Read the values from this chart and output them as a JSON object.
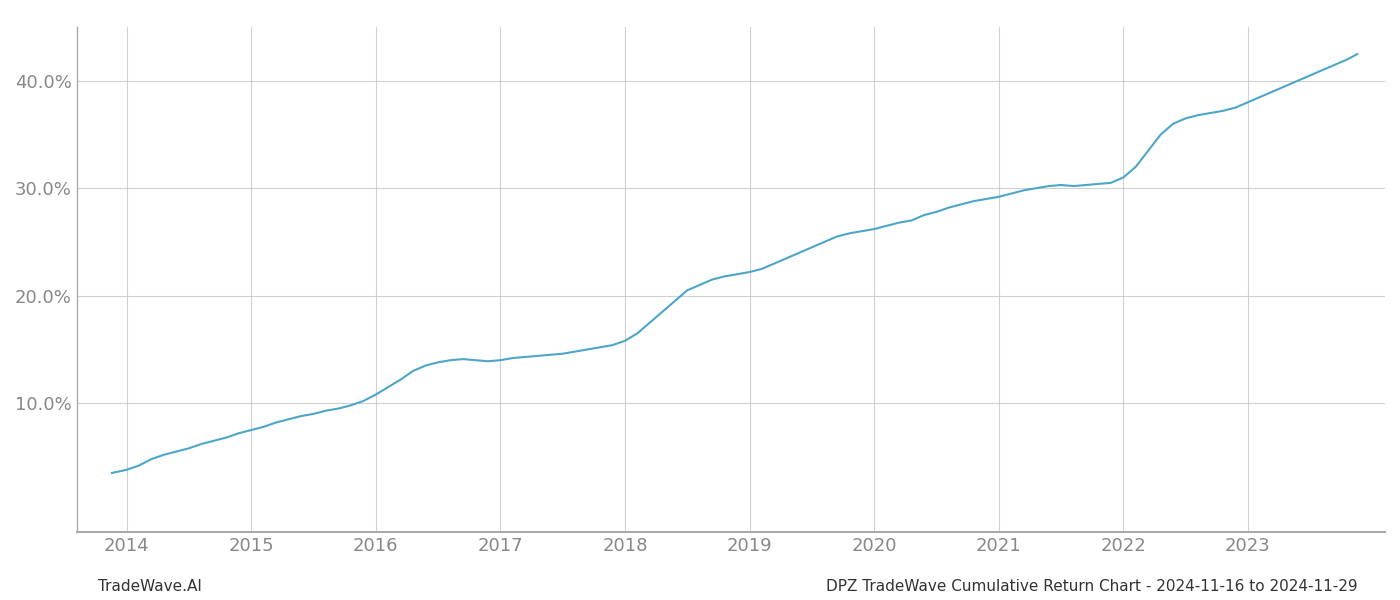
{
  "title_right": "DPZ TradeWave Cumulative Return Chart - 2024-11-16 to 2024-11-29",
  "title_left": "TradeWave.AI",
  "line_color": "#4da6c8",
  "background_color": "#ffffff",
  "grid_color": "#cccccc",
  "x_years": [
    2014,
    2015,
    2016,
    2017,
    2018,
    2019,
    2020,
    2021,
    2022,
    2023
  ],
  "x_data": [
    2013.88,
    2014.0,
    2014.1,
    2014.2,
    2014.3,
    2014.4,
    2014.5,
    2014.6,
    2014.7,
    2014.8,
    2014.9,
    2015.0,
    2015.1,
    2015.2,
    2015.3,
    2015.4,
    2015.5,
    2015.6,
    2015.7,
    2015.8,
    2015.9,
    2016.0,
    2016.1,
    2016.2,
    2016.3,
    2016.4,
    2016.5,
    2016.6,
    2016.7,
    2016.8,
    2016.9,
    2017.0,
    2017.1,
    2017.2,
    2017.3,
    2017.4,
    2017.5,
    2017.6,
    2017.7,
    2017.8,
    2017.9,
    2018.0,
    2018.1,
    2018.2,
    2018.3,
    2018.4,
    2018.5,
    2018.6,
    2018.7,
    2018.8,
    2018.9,
    2019.0,
    2019.1,
    2019.2,
    2019.3,
    2019.4,
    2019.5,
    2019.6,
    2019.7,
    2019.8,
    2019.9,
    2020.0,
    2020.1,
    2020.2,
    2020.3,
    2020.4,
    2020.5,
    2020.6,
    2020.7,
    2020.8,
    2020.9,
    2021.0,
    2021.1,
    2021.2,
    2021.3,
    2021.4,
    2021.5,
    2021.6,
    2021.7,
    2021.8,
    2021.9,
    2022.0,
    2022.1,
    2022.2,
    2022.3,
    2022.4,
    2022.5,
    2022.6,
    2022.7,
    2022.8,
    2022.9,
    2023.0,
    2023.1,
    2023.2,
    2023.3,
    2023.4,
    2023.5,
    2023.6,
    2023.7,
    2023.8,
    2023.88
  ],
  "y_data": [
    3.5,
    3.8,
    4.2,
    4.8,
    5.2,
    5.5,
    5.8,
    6.2,
    6.5,
    6.8,
    7.2,
    7.5,
    7.8,
    8.2,
    8.5,
    8.8,
    9.0,
    9.3,
    9.5,
    9.8,
    10.2,
    10.8,
    11.5,
    12.2,
    13.0,
    13.5,
    13.8,
    14.0,
    14.1,
    14.0,
    13.9,
    14.0,
    14.2,
    14.3,
    14.4,
    14.5,
    14.6,
    14.8,
    15.0,
    15.2,
    15.4,
    15.8,
    16.5,
    17.5,
    18.5,
    19.5,
    20.5,
    21.0,
    21.5,
    21.8,
    22.0,
    22.2,
    22.5,
    23.0,
    23.5,
    24.0,
    24.5,
    25.0,
    25.5,
    25.8,
    26.0,
    26.2,
    26.5,
    26.8,
    27.0,
    27.5,
    27.8,
    28.2,
    28.5,
    28.8,
    29.0,
    29.2,
    29.5,
    29.8,
    30.0,
    30.2,
    30.3,
    30.2,
    30.3,
    30.4,
    30.5,
    31.0,
    32.0,
    33.5,
    35.0,
    36.0,
    36.5,
    36.8,
    37.0,
    37.2,
    37.5,
    38.0,
    38.5,
    39.0,
    39.5,
    40.0,
    40.5,
    41.0,
    41.5,
    42.0,
    42.5
  ],
  "ylim": [
    -2,
    45
  ],
  "yticks": [
    10.0,
    20.0,
    30.0,
    40.0
  ],
  "xlim": [
    2013.6,
    2024.1
  ],
  "line_width": 1.5,
  "tick_color": "#888888",
  "tick_fontsize": 13,
  "footer_fontsize": 11,
  "spine_color": "#aaaaaa"
}
